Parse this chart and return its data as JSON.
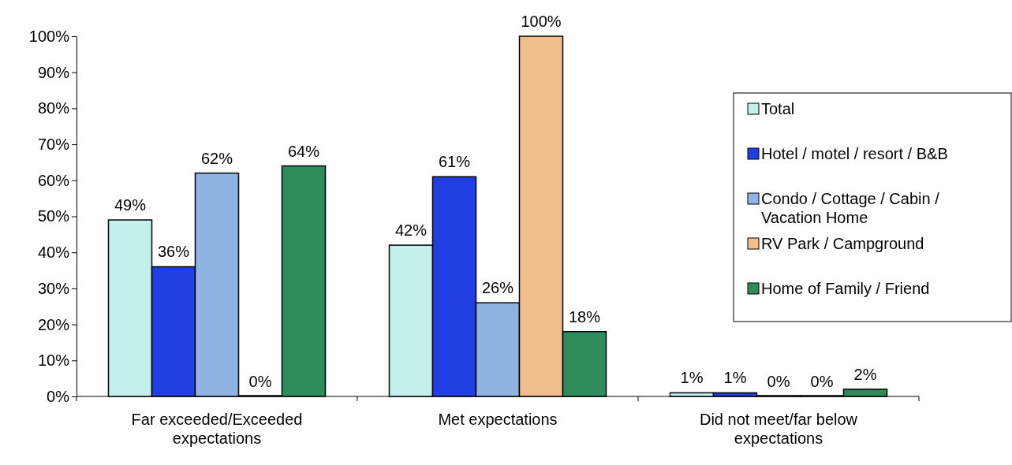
{
  "chart_data": {
    "type": "bar",
    "categories": [
      "Far exceeded/Exceeded expectations",
      "Met expectations",
      "Did not meet/far below expectations"
    ],
    "series": [
      {
        "name": "Total",
        "color": "#c4f0ec",
        "values": [
          49,
          42,
          1
        ],
        "value_labels": [
          "49%",
          "42%",
          "1%"
        ]
      },
      {
        "name": "Hotel / motel / resort / B&B",
        "color": "#1f3fe0",
        "values": [
          36,
          61,
          1
        ],
        "value_labels": [
          "36%",
          "61%",
          "1%"
        ]
      },
      {
        "name": "Condo / Cottage / Cabin / Vacation Home",
        "color": "#8fb3e3",
        "values": [
          62,
          26,
          0
        ],
        "value_labels": [
          "62%",
          "26%",
          "0%"
        ]
      },
      {
        "name": "RV Park / Campground",
        "color": "#f2bd8c",
        "values": [
          0,
          100,
          0
        ],
        "value_labels": [
          "0%",
          "100%",
          "0%"
        ]
      },
      {
        "name": "Home of Family / Friend",
        "color": "#2e8b5a",
        "values": [
          64,
          18,
          2
        ],
        "value_labels": [
          "64%",
          "18%",
          "2%"
        ]
      }
    ],
    "ylim": [
      0,
      100
    ],
    "yticks": [
      {
        "value": 0,
        "label": "0%"
      },
      {
        "value": 10,
        "label": "10%"
      },
      {
        "value": 20,
        "label": "20%"
      },
      {
        "value": 30,
        "label": "30%"
      },
      {
        "value": 40,
        "label": "40%"
      },
      {
        "value": 50,
        "label": "50%"
      },
      {
        "value": 60,
        "label": "60%"
      },
      {
        "value": 70,
        "label": "70%"
      },
      {
        "value": 80,
        "label": "80%"
      },
      {
        "value": 90,
        "label": "90%"
      },
      {
        "value": 100,
        "label": "100%"
      }
    ],
    "grid": false,
    "legend": "right"
  }
}
